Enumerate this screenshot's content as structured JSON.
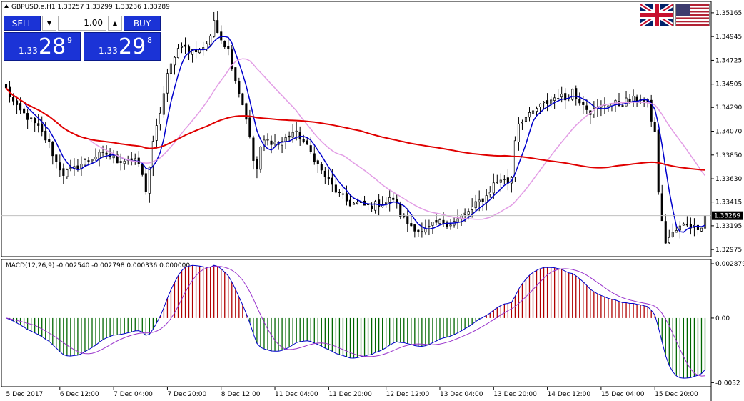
{
  "header": {
    "symbol_line": "GBPUSD.e,H1  1.33257 1.33299 1.33236 1.33289",
    "collapse_icon": "triangle-up-icon"
  },
  "trade_panel": {
    "sell_label": "SELL",
    "buy_label": "BUY",
    "lot_value": "1.00",
    "down_icon": "triangle-down-icon",
    "up_icon": "triangle-up-icon",
    "bid": {
      "prefix": "1.33",
      "big": "28",
      "sup": "9"
    },
    "ask": {
      "prefix": "1.33",
      "big": "29",
      "sup": "8"
    }
  },
  "flags": [
    "uk-flag-icon",
    "us-flag-icon"
  ],
  "chart_data": [
    {
      "type": "candlestick",
      "symbol": "GBPUSD.e",
      "timeframe": "H1",
      "ylim": [
        1.3291,
        1.3527
      ],
      "y_ticks": [
        "1.35165",
        "1.34945",
        "1.34725",
        "1.34505",
        "1.34290",
        "1.34070",
        "1.33850",
        "1.33630",
        "1.33415",
        "1.33195",
        "1.32975"
      ],
      "x_ticks": [
        "5 Dec 2017",
        "6 Dec 12:00",
        "7 Dec 04:00",
        "7 Dec 20:00",
        "8 Dec 12:00",
        "11 Dec 04:00",
        "11 Dec 20:00",
        "12 Dec 12:00",
        "13 Dec 04:00",
        "13 Dec 20:00",
        "14 Dec 12:00",
        "15 Dec 04:00",
        "15 Dec 20:00"
      ],
      "current_price": "1.33289",
      "close_anchors": [
        [
          0,
          1.3446
        ],
        [
          3,
          1.3428
        ],
        [
          6,
          1.342
        ],
        [
          9,
          1.341
        ],
        [
          12,
          1.3395
        ],
        [
          14,
          1.3378
        ],
        [
          16,
          1.3368
        ],
        [
          19,
          1.3372
        ],
        [
          22,
          1.3379
        ],
        [
          25,
          1.3384
        ],
        [
          28,
          1.3386
        ],
        [
          31,
          1.338
        ],
        [
          34,
          1.3381
        ],
        [
          37,
          1.3377
        ],
        [
          39,
          1.3353
        ],
        [
          41,
          1.3395
        ],
        [
          43,
          1.3425
        ],
        [
          45,
          1.3458
        ],
        [
          47,
          1.3478
        ],
        [
          49,
          1.3488
        ],
        [
          51,
          1.348
        ],
        [
          53,
          1.3482
        ],
        [
          55,
          1.3485
        ],
        [
          57,
          1.3492
        ],
        [
          58,
          1.351
        ],
        [
          60,
          1.3493
        ],
        [
          62,
          1.3482
        ],
        [
          64,
          1.3455
        ],
        [
          66,
          1.3432
        ],
        [
          67,
          1.342
        ],
        [
          69,
          1.338
        ],
        [
          70,
          1.3372
        ],
        [
          71,
          1.339
        ],
        [
          72,
          1.3398
        ],
        [
          74,
          1.3398
        ],
        [
          76,
          1.3395
        ],
        [
          78,
          1.34
        ],
        [
          80,
          1.3406
        ],
        [
          82,
          1.3402
        ],
        [
          84,
          1.3392
        ],
        [
          86,
          1.3382
        ],
        [
          88,
          1.337
        ],
        [
          90,
          1.3361
        ],
        [
          92,
          1.3352
        ],
        [
          94,
          1.3345
        ],
        [
          96,
          1.334
        ],
        [
          98,
          1.334
        ],
        [
          100,
          1.3338
        ],
        [
          102,
          1.3338
        ],
        [
          104,
          1.334
        ],
        [
          106,
          1.3342
        ],
        [
          108,
          1.3345
        ],
        [
          109,
          1.3338
        ],
        [
          110,
          1.333
        ],
        [
          112,
          1.3322
        ],
        [
          114,
          1.3318
        ],
        [
          116,
          1.3313
        ],
        [
          118,
          1.3317
        ],
        [
          120,
          1.3322
        ],
        [
          122,
          1.3323
        ],
        [
          124,
          1.3322
        ],
        [
          126,
          1.3325
        ],
        [
          128,
          1.333
        ],
        [
          130,
          1.3336
        ],
        [
          132,
          1.3342
        ],
        [
          134,
          1.3347
        ],
        [
          136,
          1.3358
        ],
        [
          138,
          1.3363
        ],
        [
          140,
          1.336
        ],
        [
          141,
          1.3365
        ],
        [
          142,
          1.34
        ],
        [
          143,
          1.3415
        ],
        [
          144,
          1.3418
        ],
        [
          146,
          1.3421
        ],
        [
          148,
          1.3428
        ],
        [
          150,
          1.3432
        ],
        [
          152,
          1.3436
        ],
        [
          154,
          1.344
        ],
        [
          156,
          1.3437
        ],
        [
          158,
          1.3445
        ],
        [
          159,
          1.3438
        ],
        [
          161,
          1.3434
        ],
        [
          163,
          1.3425
        ],
        [
          165,
          1.3427
        ],
        [
          167,
          1.3432
        ],
        [
          169,
          1.3433
        ],
        [
          171,
          1.3432
        ],
        [
          173,
          1.3435
        ],
        [
          175,
          1.3436
        ],
        [
          177,
          1.3438
        ],
        [
          179,
          1.3431
        ],
        [
          181,
          1.3405
        ],
        [
          182,
          1.3352
        ],
        [
          183,
          1.3322
        ],
        [
          184,
          1.3305
        ],
        [
          186,
          1.3312
        ],
        [
          188,
          1.3318
        ],
        [
          190,
          1.3322
        ],
        [
          192,
          1.3318
        ],
        [
          194,
          1.332
        ],
        [
          195,
          1.3329
        ]
      ],
      "moving_averages": [
        {
          "color": "#0000cc",
          "kind": "fast"
        },
        {
          "color": "#e29ce5",
          "kind": "medium"
        },
        {
          "color": "#e00000",
          "kind": "slow"
        }
      ],
      "colors": {
        "candle": "#000000",
        "bull_fill": "#ffffff",
        "bear_fill": "#000000",
        "price_line": "#c0c0c0"
      },
      "grid": false
    },
    {
      "type": "macd",
      "title": "MACD(12,26,9) -0.002540 -0.002798 0.000336 0.000000",
      "y_ticks": [
        "0.002879",
        "0.00",
        "-0.0032"
      ],
      "ylim": [
        -0.0034,
        0.0029
      ],
      "colors": {
        "macd_line": "#0000cc",
        "signal_line": "#9933cc",
        "hist_up": "#b00000",
        "hist_down": "#006600"
      }
    }
  ]
}
